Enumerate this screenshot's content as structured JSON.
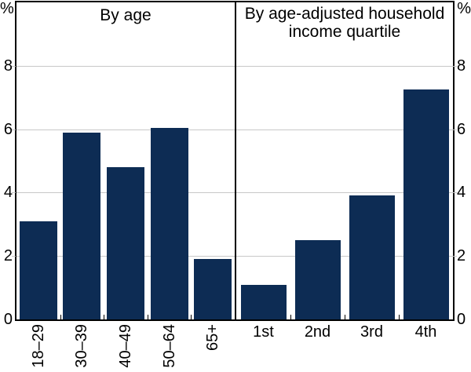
{
  "figure": {
    "unit_left": "%",
    "unit_right": "%",
    "colors": {
      "bar": "#0d2c54",
      "gridline": "#c8c8c8",
      "axis": "#000000",
      "text": "#000000",
      "background": "#ffffff"
    }
  },
  "chart_data": [
    {
      "type": "bar",
      "panel": "left",
      "title": "By age",
      "categories": [
        "18–29",
        "30–39",
        "40–49",
        "50–64",
        "65+"
      ],
      "values": [
        3.1,
        5.9,
        4.8,
        6.05,
        1.9
      ],
      "xlabel": "",
      "ylabel": "%",
      "ylim": [
        0,
        10
      ],
      "yticks": [
        0,
        2,
        4,
        6,
        8
      ],
      "grid": true,
      "legend": "none",
      "category_label_rotation": -90
    },
    {
      "type": "bar",
      "panel": "right",
      "title": "By age-adjusted household income quartile",
      "title_lines": [
        "By age-adjusted household",
        "income quartile"
      ],
      "categories": [
        "1st",
        "2nd",
        "3rd",
        "4th"
      ],
      "values": [
        1.1,
        2.5,
        3.9,
        7.25
      ],
      "xlabel": "",
      "ylabel": "%",
      "ylim": [
        0,
        10
      ],
      "yticks": [
        0,
        2,
        4,
        6,
        8
      ],
      "grid": true,
      "legend": "none",
      "category_label_rotation": 0
    }
  ]
}
